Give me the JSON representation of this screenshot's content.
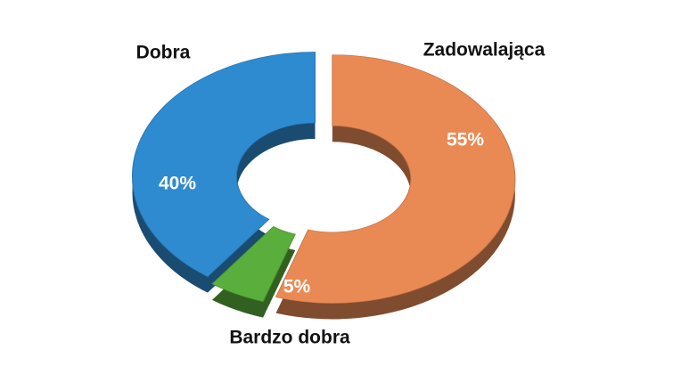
{
  "chart_data": {
    "type": "donut",
    "categories": [
      "Zadowalająca",
      "Bardzo dobra",
      "Dobra"
    ],
    "values": [
      55,
      5,
      40
    ],
    "value_labels": [
      "55%",
      "5%",
      "40%"
    ],
    "colors": [
      "#e98a55",
      "#5aae3c",
      "#2f8bd0"
    ]
  }
}
